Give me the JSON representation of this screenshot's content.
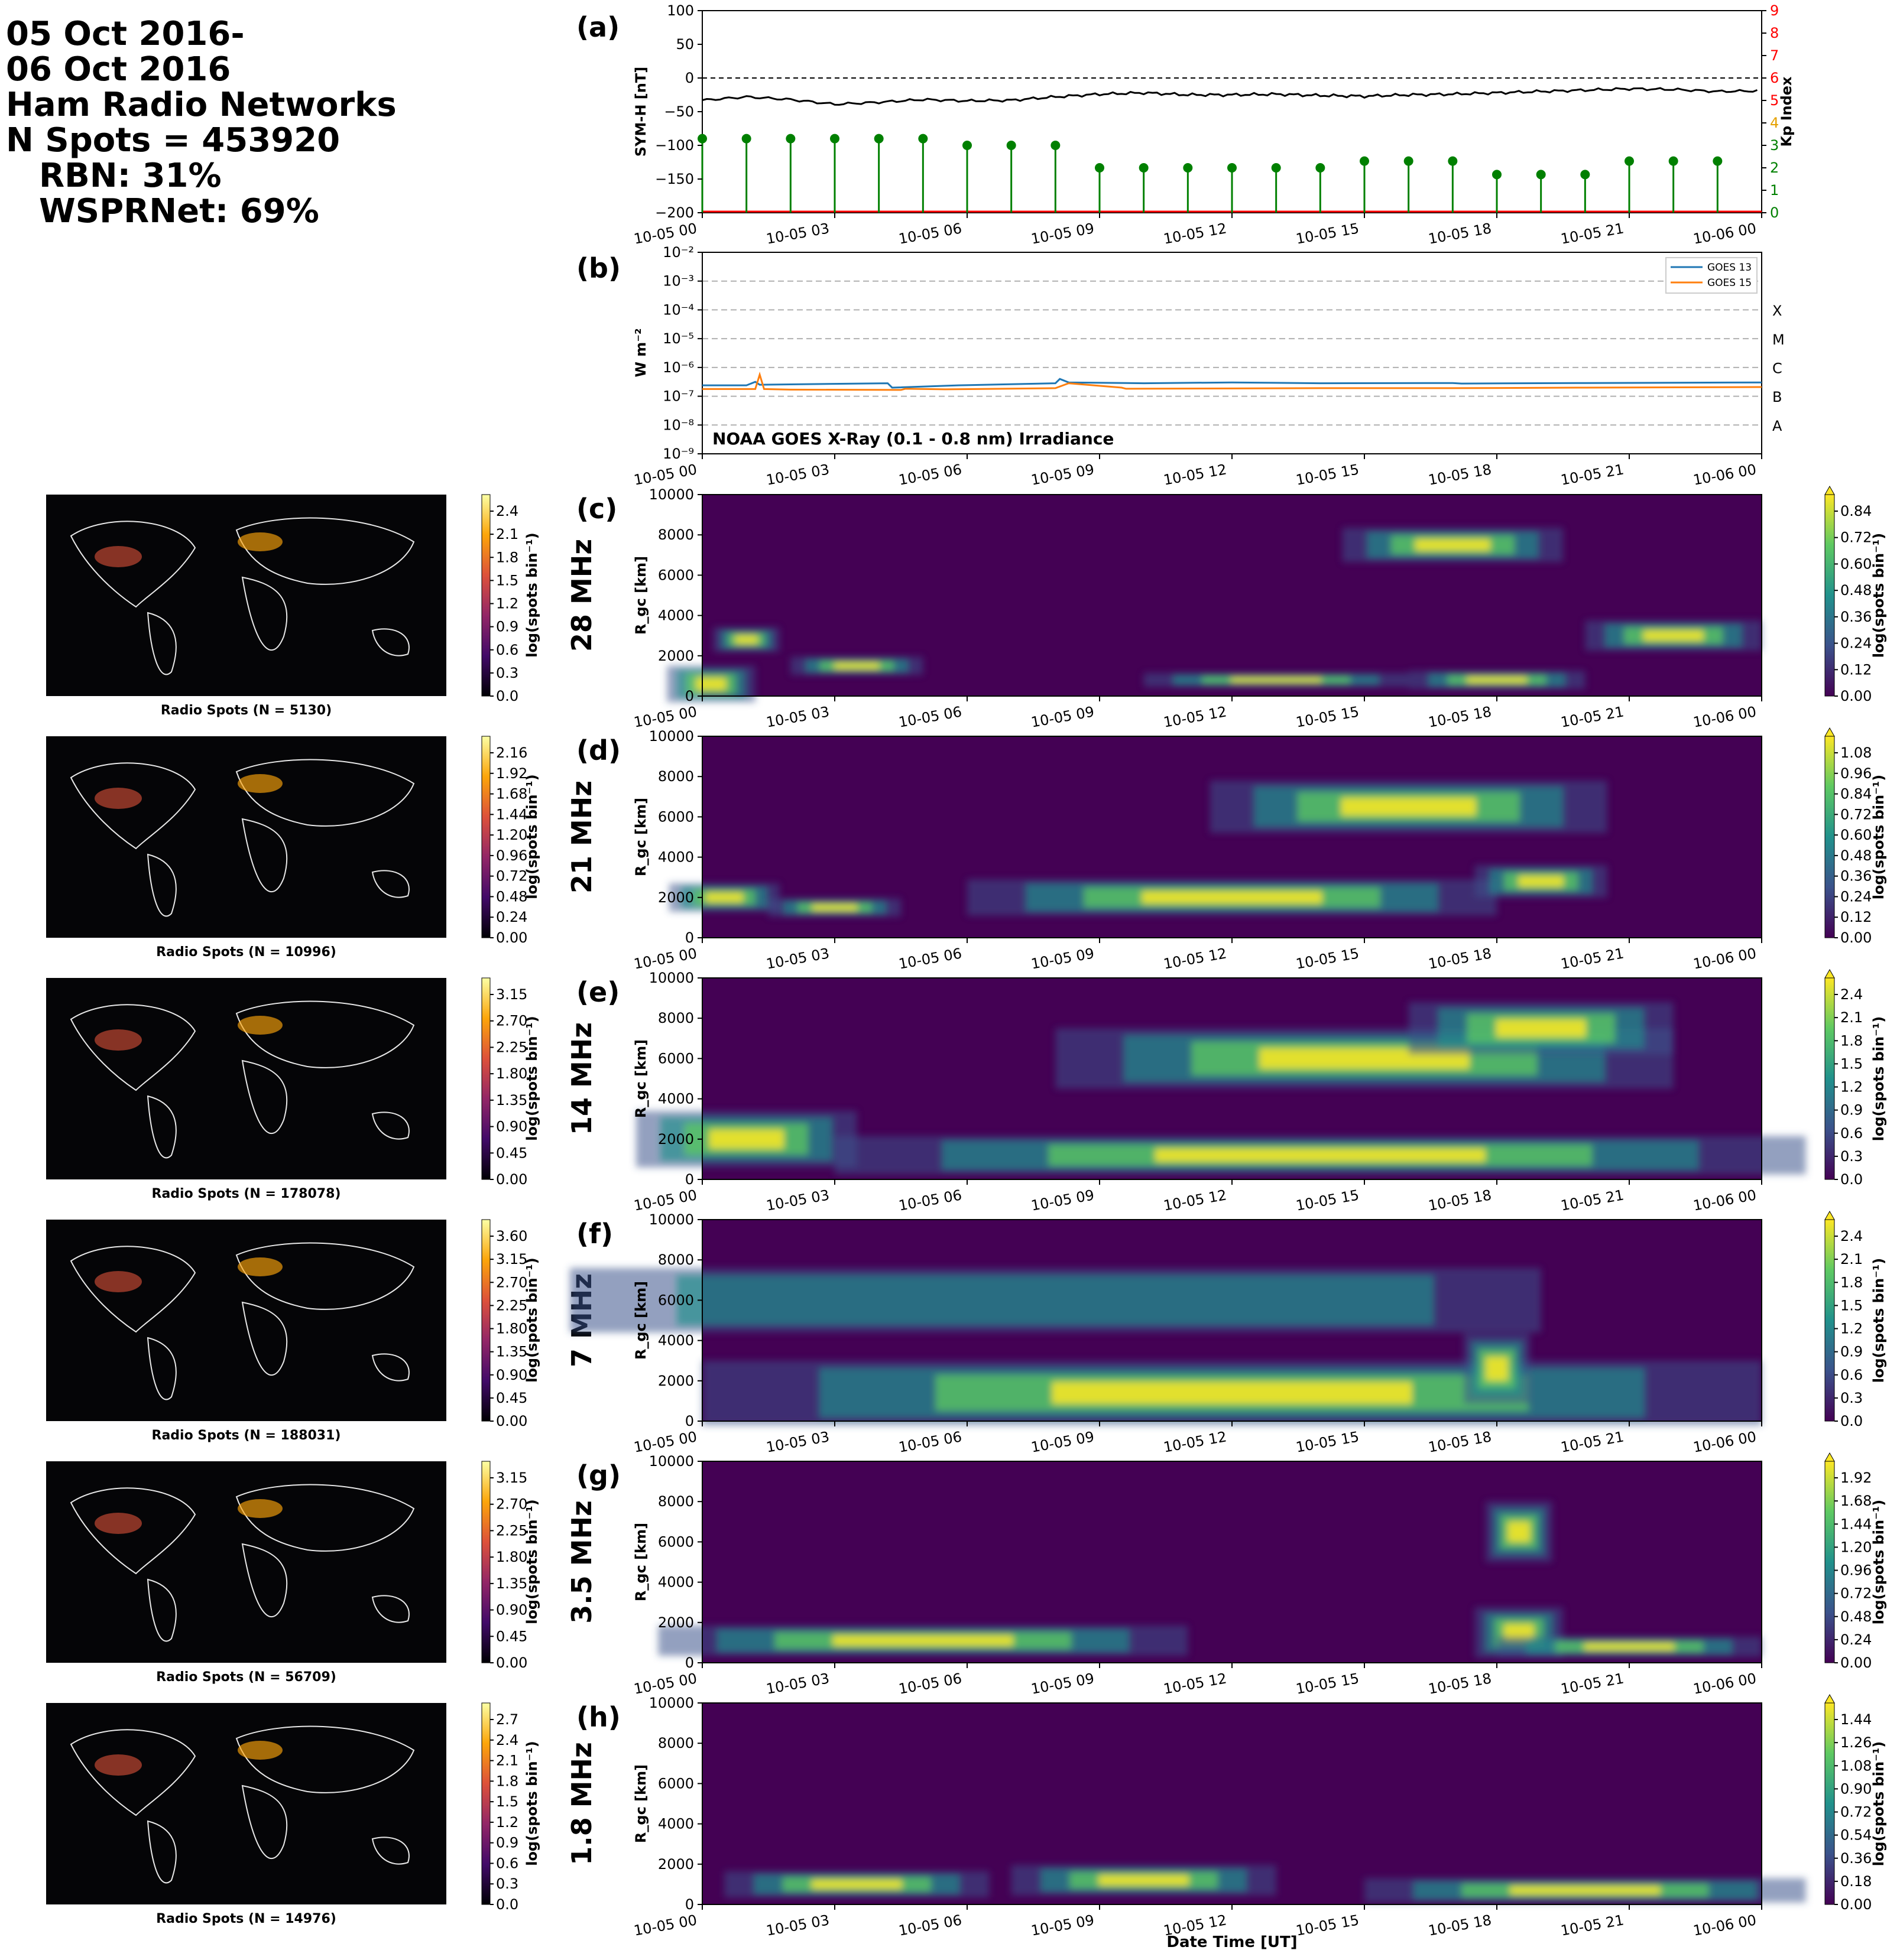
{
  "header": {
    "lines": [
      "05 Oct 2016-",
      "06 Oct 2016",
      "Ham Radio Networks",
      "N Spots = 453920",
      "RBN: 31%",
      "WSPRNet: 69%"
    ]
  },
  "time_ticks": [
    "10-05 00",
    "10-05 03",
    "10-05 06",
    "10-05 09",
    "10-05 12",
    "10-05 15",
    "10-05 18",
    "10-05 21",
    "10-06 00"
  ],
  "x_axis_label": "Date Time [UT]",
  "colors": {
    "symh": "#000000",
    "kp": "#008000",
    "kp_axis": "#ff0000",
    "goes13": "#1f77b4",
    "goes15": "#ff7f0e",
    "viridis": [
      "#440154",
      "#3b528b",
      "#21918c",
      "#5ec962",
      "#fde725"
    ],
    "inferno": [
      "#000004",
      "#420a68",
      "#932667",
      "#dd513a",
      "#fca50a",
      "#fcffa4"
    ]
  },
  "chart_data": [
    {
      "panel": "(a)",
      "type": "line",
      "ylabel": "SYM-H [nT]",
      "ylim": [
        -200,
        100
      ],
      "yticks": [
        "100",
        "50",
        "0",
        "−50",
        "−100",
        "−150",
        "−200"
      ],
      "y2label": "Kp Index",
      "y2lim": [
        0,
        9
      ],
      "y2ticks": [
        "0",
        "1",
        "2",
        "3",
        "4",
        "5",
        "6",
        "7",
        "8",
        "9"
      ],
      "series": [
        {
          "kind": "line",
          "x": [
            0,
            1,
            2,
            3,
            4,
            5,
            6,
            7,
            8,
            9,
            10,
            11,
            12,
            13,
            14,
            15,
            16,
            17,
            18,
            19,
            20,
            21,
            22,
            23,
            24
          ],
          "values": [
            -33,
            -28,
            -32,
            -39,
            -36,
            -32,
            -34,
            -33,
            -28,
            -24,
            -22,
            -25,
            -25,
            -24,
            -26,
            -27,
            -25,
            -24,
            -22,
            -20,
            -18,
            -16,
            -17,
            -20,
            -19
          ]
        },
        {
          "kind": "stem",
          "x": [
            0,
            1,
            2,
            3,
            4,
            5,
            6,
            7,
            8,
            9,
            10,
            11,
            12,
            13,
            14,
            15,
            16,
            17,
            18,
            19,
            20,
            21,
            22,
            23
          ],
          "values": [
            3.3,
            3.3,
            3.3,
            3.3,
            3.3,
            3.3,
            3.0,
            3.0,
            3.0,
            2.0,
            2.0,
            2.0,
            2.0,
            2.0,
            2.0,
            2.3,
            2.3,
            2.3,
            1.7,
            1.7,
            1.7,
            2.3,
            2.3,
            2.3
          ]
        }
      ]
    },
    {
      "panel": "(b)",
      "type": "line",
      "ylabel": "W m⁻²",
      "yticks": [
        "10⁻²",
        "10⁻³",
        "10⁻⁴",
        "10⁻⁵",
        "10⁻⁶",
        "10⁻⁷",
        "10⁻⁸",
        "10⁻⁹"
      ],
      "flare_classes": [
        "X",
        "M",
        "C",
        "B",
        "A"
      ],
      "annotation": "NOAA GOES X-Ray (0.1 - 0.8 nm) Irradiance",
      "legend": [
        "GOES 13",
        "GOES 15"
      ],
      "series": [
        {
          "name": "GOES 13",
          "x": [
            0,
            1,
            1.2,
            1.3,
            4.2,
            4.3,
            5.8,
            8,
            8.1,
            8.3,
            10,
            12,
            14,
            17,
            17.2,
            20,
            24
          ],
          "values": [
            -6.62,
            -6.62,
            -6.5,
            -6.6,
            -6.55,
            -6.7,
            -6.62,
            -6.55,
            -6.4,
            -6.52,
            -6.55,
            -6.52,
            -6.55,
            -6.54,
            -6.56,
            -6.54,
            -6.52
          ]
        },
        {
          "name": "GOES 15",
          "x": [
            0,
            1.2,
            1.3,
            1.4,
            2,
            4.5,
            4.6,
            5.5,
            8,
            8.3,
            9.5,
            9.6,
            12,
            14,
            17,
            20,
            24
          ],
          "values": [
            -6.75,
            -6.75,
            -6.25,
            -6.75,
            -6.77,
            -6.78,
            -6.74,
            -6.76,
            -6.72,
            -6.55,
            -6.7,
            -6.74,
            -6.73,
            -6.72,
            -6.72,
            -6.7,
            -6.68
          ]
        }
      ]
    },
    {
      "panel": "(c)",
      "band": "28 MHz",
      "type": "heatmap",
      "ylabel": "R_gc [km]",
      "yticks": [
        "10000",
        "8000",
        "6000",
        "4000",
        "2000",
        "0"
      ],
      "cbar_label": "log(spots bin⁻¹)",
      "cbar_ticks": [
        "0.84",
        "0.72",
        "0.60",
        "0.48",
        "0.36",
        "0.24",
        "0.12",
        "0.00"
      ],
      "map_label": "Radio Spots (N = 5130)",
      "map_cbar_ticks": [
        "2.4",
        "2.1",
        "1.8",
        "1.5",
        "1.2",
        "0.9",
        "0.6",
        "0.3",
        "0.0"
      ]
    },
    {
      "panel": "(d)",
      "band": "21 MHz",
      "type": "heatmap",
      "ylabel": "R_gc [km]",
      "yticks": [
        "10000",
        "8000",
        "6000",
        "4000",
        "2000",
        "0"
      ],
      "cbar_label": "log(spots bin⁻¹)",
      "cbar_ticks": [
        "1.08",
        "0.96",
        "0.84",
        "0.72",
        "0.60",
        "0.48",
        "0.36",
        "0.24",
        "0.12",
        "0.00"
      ],
      "map_label": "Radio Spots (N = 10996)",
      "map_cbar_ticks": [
        "2.16",
        "1.92",
        "1.68",
        "1.44",
        "1.20",
        "0.96",
        "0.72",
        "0.48",
        "0.24",
        "0.00"
      ]
    },
    {
      "panel": "(e)",
      "band": "14 MHz",
      "type": "heatmap",
      "ylabel": "R_gc [km]",
      "yticks": [
        "10000",
        "8000",
        "6000",
        "4000",
        "2000",
        "0"
      ],
      "cbar_label": "log(spots bin⁻¹)",
      "cbar_ticks": [
        "2.4",
        "2.1",
        "1.8",
        "1.5",
        "1.2",
        "0.9",
        "0.6",
        "0.3",
        "0.0"
      ],
      "map_label": "Radio Spots (N = 178078)",
      "map_cbar_ticks": [
        "3.15",
        "2.70",
        "2.25",
        "1.80",
        "1.35",
        "0.90",
        "0.45",
        "0.00"
      ]
    },
    {
      "panel": "(f)",
      "band": "7 MHz",
      "type": "heatmap",
      "ylabel": "R_gc [km]",
      "yticks": [
        "10000",
        "8000",
        "6000",
        "4000",
        "2000",
        "0"
      ],
      "cbar_label": "log(spots bin⁻¹)",
      "cbar_ticks": [
        "2.4",
        "2.1",
        "1.8",
        "1.5",
        "1.2",
        "0.9",
        "0.6",
        "0.3",
        "0.0"
      ],
      "map_label": "Radio Spots (N = 188031)",
      "map_cbar_ticks": [
        "3.60",
        "3.15",
        "2.70",
        "2.25",
        "1.80",
        "1.35",
        "0.90",
        "0.45",
        "0.00"
      ]
    },
    {
      "panel": "(g)",
      "band": "3.5 MHz",
      "type": "heatmap",
      "ylabel": "R_gc [km]",
      "yticks": [
        "10000",
        "8000",
        "6000",
        "4000",
        "2000",
        "0"
      ],
      "cbar_label": "log(spots bin⁻¹)",
      "cbar_ticks": [
        "1.92",
        "1.68",
        "1.44",
        "1.20",
        "0.96",
        "0.72",
        "0.48",
        "0.24",
        "0.00"
      ],
      "map_label": "Radio Spots (N = 56709)",
      "map_cbar_ticks": [
        "3.15",
        "2.70",
        "2.25",
        "1.80",
        "1.35",
        "0.90",
        "0.45",
        "0.00"
      ]
    },
    {
      "panel": "(h)",
      "band": "1.8 MHz",
      "type": "heatmap",
      "ylabel": "R_gc [km]",
      "yticks": [
        "10000",
        "8000",
        "6000",
        "4000",
        "2000",
        "0"
      ],
      "cbar_label": "log(spots bin⁻¹)",
      "cbar_ticks": [
        "1.44",
        "1.26",
        "1.08",
        "0.90",
        "0.72",
        "0.54",
        "0.36",
        "0.18",
        "0.00"
      ],
      "map_label": "Radio Spots (N = 14976)",
      "map_cbar_ticks": [
        "2.7",
        "2.4",
        "2.1",
        "1.8",
        "1.5",
        "1.2",
        "0.9",
        "0.6",
        "0.3",
        "0.0"
      ]
    }
  ]
}
